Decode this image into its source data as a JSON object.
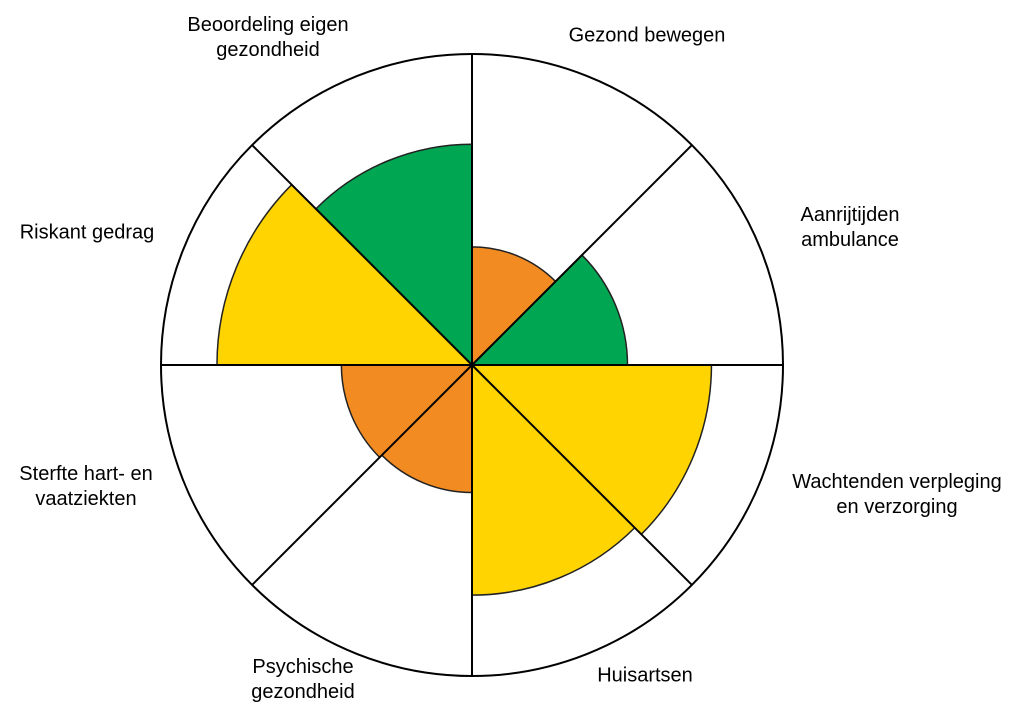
{
  "chart_data": {
    "type": "polar-area",
    "categories": [
      "Gezond bewegen",
      "Aanrijtijden\nambulance",
      "Wachtenden verpleging\nen verzorging",
      "Huisartsen",
      "Psychische\ngezondheid",
      "Sterfte hart- en\nvaatziekten",
      "Riskant gedrag",
      "Beoordeling eigen\ngezondheid"
    ],
    "values": [
      38,
      50,
      77,
      74,
      41,
      42,
      82,
      71
    ],
    "colors": [
      "#f28c22",
      "#00a651",
      "#ffd400",
      "#ffd400",
      "#f28c22",
      "#f28c22",
      "#ffd400",
      "#00a651"
    ],
    "rlim": [
      0,
      100
    ]
  }
}
